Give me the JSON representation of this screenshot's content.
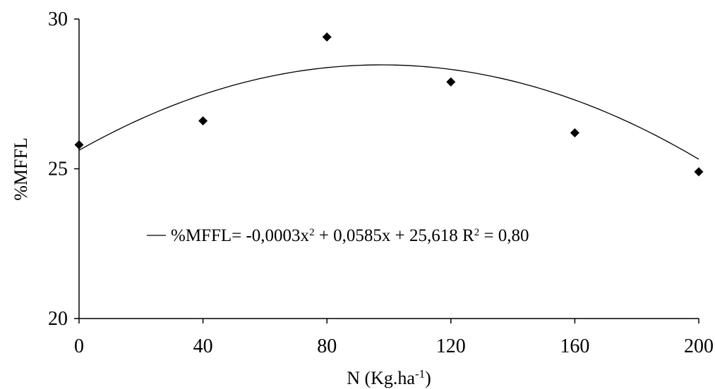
{
  "chart_data": {
    "type": "scatter",
    "x": [
      0,
      40,
      80,
      120,
      160,
      200
    ],
    "y": [
      25.8,
      26.6,
      29.4,
      27.9,
      26.2,
      24.9
    ],
    "xticks": [
      "0",
      "40",
      "80",
      "120",
      "160",
      "200"
    ],
    "yticks": [
      "20",
      "25",
      "30"
    ],
    "xlim": [
      0,
      200
    ],
    "ylim": [
      20,
      30
    ],
    "xlabel": {
      "main": "N (Kg.ha",
      "sup": "-1",
      "end": ")"
    },
    "ylabel": "%MFFL",
    "fit": {
      "type": "polynomial",
      "coefficients": {
        "a": -0.0003,
        "b": 0.0585,
        "c": 25.618
      },
      "equation_prefix": "%MFFL= -0,0003x",
      "equation_middle": " + 0,0585x + 25,618 R",
      "equation_suffix": " = 0,80",
      "exponent_2": "2",
      "r2": 0.8
    },
    "grid": false,
    "marker_color": "#000000",
    "line_color": "#000000"
  }
}
